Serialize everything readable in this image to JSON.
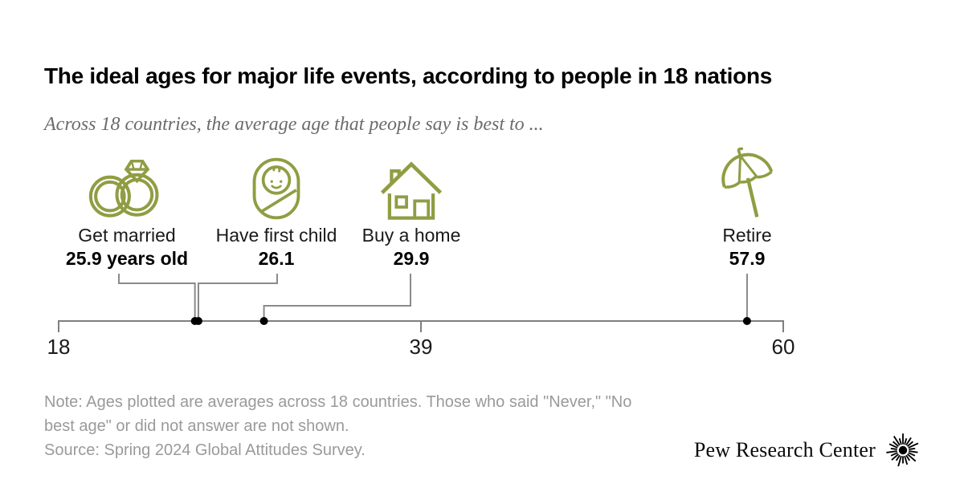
{
  "title": "The ideal ages for major life events, according to people in 18 nations",
  "subtitle": "Across 18 countries, the average age that people say is best to ...",
  "chart_data": {
    "type": "scatter",
    "description": "Dot plot on a single horizontal age axis; each life event is an icon/label connected to its dot on the number line",
    "axis": {
      "label": "age",
      "min": 18,
      "max": 60,
      "ticks": [
        18,
        39,
        60
      ]
    },
    "points": [
      {
        "label": "Get married",
        "value": 25.9,
        "value_label": "25.9 years old",
        "icon": "wedding-rings-icon"
      },
      {
        "label": "Have first child",
        "value": 26.1,
        "value_label": "26.1",
        "icon": "swaddled-baby-icon"
      },
      {
        "label": "Buy a home",
        "value": 29.9,
        "value_label": "29.9",
        "icon": "house-icon"
      },
      {
        "label": "Retire",
        "value": 57.9,
        "value_label": "57.9",
        "icon": "beach-umbrella-icon"
      }
    ],
    "colors": {
      "icon": "#909d43",
      "dot": "#000000",
      "connector": "#8a8a8a",
      "axis": "#7f7f7f"
    },
    "legend": "none",
    "grid": false
  },
  "note": {
    "lines": [
      "Note: Ages plotted are averages across 18 countries. Those who said \"Never,\" \"No",
      "best age\" or did not answer are not shown.",
      "Source: Spring 2024 Global Attitudes Survey."
    ]
  },
  "branding": {
    "wordmark": "Pew Research Center",
    "logo": "pew-sunburst-icon"
  }
}
